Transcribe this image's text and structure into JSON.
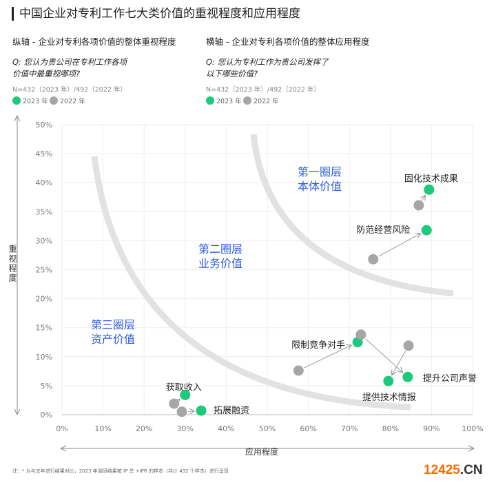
{
  "title": "中国企业对专利工作七大类价值的重视程度和应用程度",
  "left": {
    "subtitle": "纵轴 - 企业对专利各项价值的整体重视程度",
    "question": "Q: 您认为贵公司在专利工作各项价值中最重视哪项?",
    "n": "N=432（2023 年）/492（2022 年）"
  },
  "right": {
    "subtitle": "横轴 - 企业对专利各项价值的整体应用程度",
    "question": "Q: 您认为专利工作为贵公司发挥了以下哪些价值?",
    "n": "N=432（2023 年）/492（2022 年）"
  },
  "legend": {
    "y2023": "2023 年",
    "y2022": "2022 年"
  },
  "colors": {
    "y2023": "#1dc97a",
    "y2022": "#a6a6a6",
    "zone": "#2d5be3"
  },
  "note": "注：* 为与去年进行结果对比，2023 年调研结果按 IP 总 +IPR 的样本（共计 432 个样本）进行呈现",
  "watermark": {
    "num": "12425",
    "dom": ".CN"
  },
  "chart_data": {
    "type": "scatter",
    "xlabel": "应用程度",
    "ylabel": "重视程度",
    "xlim": [
      0,
      100
    ],
    "ylim": [
      0,
      50
    ],
    "xticks": [
      "0%",
      "10%",
      "20%",
      "30%",
      "40%",
      "50%",
      "60%",
      "70%",
      "80%",
      "90%",
      "100%"
    ],
    "yticks": [
      "0%",
      "5%",
      "10%",
      "15%",
      "20%",
      "25%",
      "30%",
      "35%",
      "40%",
      "45%",
      "50%"
    ],
    "grid": true,
    "zones": [
      {
        "line1": "第一圈层",
        "line2": "本体价值"
      },
      {
        "line1": "第二圈层",
        "line2": "业务价值"
      },
      {
        "line1": "第三圈层",
        "line2": "资产价值"
      }
    ],
    "points": [
      {
        "label": "固化技术成果",
        "y2022": [
          86.9,
          36.1
        ],
        "y2023": [
          89.4,
          38.8
        ]
      },
      {
        "label": "防范经营风险",
        "y2022": [
          75.8,
          26.8
        ],
        "y2023": [
          88.8,
          31.8
        ]
      },
      {
        "label": "限制竞争对手",
        "y2022": [
          57.6,
          7.6
        ],
        "y2023": [
          72.0,
          12.5
        ]
      },
      {
        "label": "提升公司声誉",
        "y2022": [
          72.8,
          13.8
        ],
        "y2023": [
          84.2,
          6.5
        ]
      },
      {
        "label": "提供技术情报",
        "y2022": [
          84.4,
          11.9
        ],
        "y2023": [
          79.5,
          5.8
        ]
      },
      {
        "label": "获取收入",
        "y2022": [
          27.3,
          1.9
        ],
        "y2023": [
          30.0,
          3.4
        ]
      },
      {
        "label": "拓展融资",
        "y2022": [
          29.2,
          0.5
        ],
        "y2023": [
          33.9,
          0.7
        ]
      }
    ]
  }
}
